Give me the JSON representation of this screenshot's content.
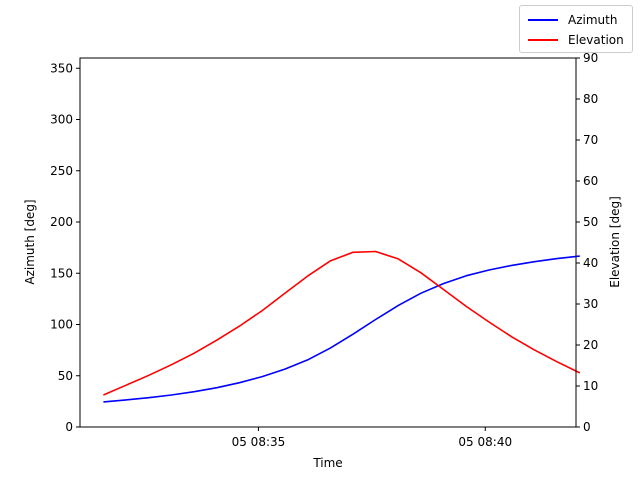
{
  "chart_data": {
    "type": "line",
    "xlabel": "Time",
    "ylabel_left": "Azimuth [deg]",
    "ylabel_right": "Elevation [deg]",
    "xlim": [
      "05 08:31:04",
      "05 08:42:00"
    ],
    "ylim_left": [
      0,
      360
    ],
    "ylim_right": [
      0,
      90
    ],
    "x_ticks": [
      "05 08:35",
      "05 08:40"
    ],
    "y_ticks_left": [
      0,
      50,
      100,
      150,
      200,
      250,
      300,
      350
    ],
    "y_ticks_right": [
      0,
      10,
      20,
      30,
      40,
      50,
      60,
      70,
      80,
      90
    ],
    "legend_position": "top-right",
    "x": [
      "05 08:31:35",
      "05 08:32:05",
      "05 08:32:35",
      "05 08:33:05",
      "05 08:33:35",
      "05 08:34:05",
      "05 08:34:35",
      "05 08:35:05",
      "05 08:35:35",
      "05 08:36:05",
      "05 08:36:35",
      "05 08:37:05",
      "05 08:37:35",
      "05 08:38:05",
      "05 08:38:35",
      "05 08:39:05",
      "05 08:39:35",
      "05 08:40:05",
      "05 08:40:35",
      "05 08:41:05",
      "05 08:41:35",
      "05 08:42:05"
    ],
    "series": [
      {
        "name": "Azimuth",
        "axis": "left",
        "color": "#0000ff",
        "values": [
          24.5,
          26.4,
          28.6,
          31.2,
          34.4,
          38.3,
          43.2,
          49.2,
          56.5,
          65.5,
          77.0,
          90.5,
          104.9,
          118.6,
          130.5,
          140.0,
          147.6,
          153.2,
          157.7,
          161.3,
          164.3,
          166.7
        ]
      },
      {
        "name": "Elevation",
        "axis": "right",
        "color": "#ff0000",
        "values": [
          7.8,
          10.2,
          12.6,
          15.2,
          18.0,
          21.2,
          24.6,
          28.4,
          32.6,
          36.8,
          40.5,
          42.6,
          42.8,
          41.0,
          37.6,
          33.5,
          29.4,
          25.6,
          22.0,
          18.8,
          15.9,
          13.2
        ]
      }
    ]
  }
}
